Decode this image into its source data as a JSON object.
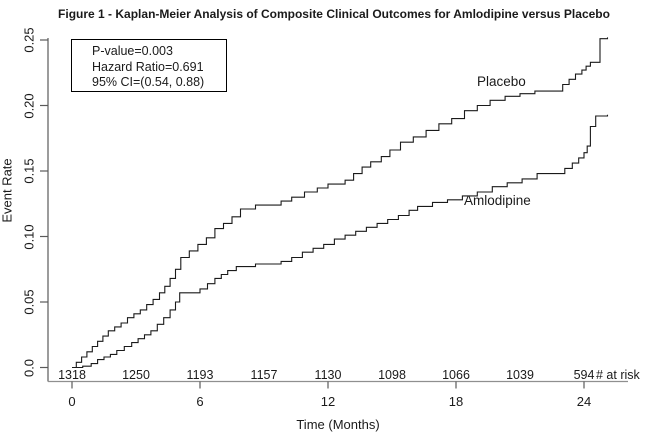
{
  "figure": {
    "title": "Figure 1 - Kaplan-Meier Analysis of Composite Clinical Outcomes for Amlodipine versus Placebo"
  },
  "stat_box": {
    "lines": [
      "P-value=0.003",
      "Hazard Ratio=0.691",
      "95% CI=(0.54, 0.88)"
    ]
  },
  "chart_data": {
    "type": "line",
    "subtype": "kaplan-meier-step",
    "title": "Figure 1 - Kaplan-Meier Analysis of Composite Clinical Outcomes for Amlodipine versus Placebo",
    "xlabel": "Time (Months)",
    "ylabel": "Event Rate",
    "xlim": [
      0,
      25.5
    ],
    "ylim": [
      0,
      0.25
    ],
    "x_ticks": [
      0,
      6,
      12,
      18,
      24
    ],
    "y_ticks": [
      "0.0",
      "0.05",
      "0.10",
      "0.15",
      "0.20",
      "0.25"
    ],
    "grid": false,
    "legend_position": "inline-labels",
    "line_color": "#1a1a1a",
    "series": [
      {
        "name": "Placebo",
        "points": [
          [
            0,
            0
          ],
          [
            0.2,
            0.004
          ],
          [
            0.45,
            0.008
          ],
          [
            0.7,
            0.012
          ],
          [
            0.95,
            0.016
          ],
          [
            1.2,
            0.02
          ],
          [
            1.45,
            0.024
          ],
          [
            1.7,
            0.028
          ],
          [
            2.0,
            0.031
          ],
          [
            2.3,
            0.034
          ],
          [
            2.6,
            0.038
          ],
          [
            2.9,
            0.041
          ],
          [
            3.2,
            0.044
          ],
          [
            3.5,
            0.048
          ],
          [
            3.8,
            0.052
          ],
          [
            4.1,
            0.057
          ],
          [
            4.35,
            0.062
          ],
          [
            4.6,
            0.068
          ],
          [
            4.85,
            0.075
          ],
          [
            5.1,
            0.084
          ],
          [
            5.5,
            0.089
          ],
          [
            5.9,
            0.094
          ],
          [
            6.3,
            0.099
          ],
          [
            6.7,
            0.106
          ],
          [
            7.1,
            0.11
          ],
          [
            7.5,
            0.115
          ],
          [
            7.9,
            0.121
          ],
          [
            8.6,
            0.124
          ],
          [
            9.8,
            0.127
          ],
          [
            10.3,
            0.13
          ],
          [
            10.9,
            0.134
          ],
          [
            11.5,
            0.137
          ],
          [
            12.0,
            0.14
          ],
          [
            12.8,
            0.143
          ],
          [
            13.2,
            0.148
          ],
          [
            13.6,
            0.153
          ],
          [
            14.0,
            0.157
          ],
          [
            14.5,
            0.161
          ],
          [
            14.9,
            0.166
          ],
          [
            15.4,
            0.172
          ],
          [
            16.0,
            0.176
          ],
          [
            16.6,
            0.181
          ],
          [
            17.2,
            0.186
          ],
          [
            17.8,
            0.19
          ],
          [
            18.4,
            0.196
          ],
          [
            19.0,
            0.2
          ],
          [
            19.6,
            0.204
          ],
          [
            20.3,
            0.207
          ],
          [
            21.0,
            0.209
          ],
          [
            21.7,
            0.211
          ],
          [
            23.0,
            0.216
          ],
          [
            23.3,
            0.22
          ],
          [
            23.6,
            0.224
          ],
          [
            23.9,
            0.227
          ],
          [
            24.1,
            0.23
          ],
          [
            24.3,
            0.233
          ],
          [
            24.75,
            0.251
          ],
          [
            25.1,
            0.252
          ]
        ]
      },
      {
        "name": "Amlodipine",
        "points": [
          [
            0,
            0
          ],
          [
            0.5,
            0.001
          ],
          [
            0.9,
            0.003
          ],
          [
            1.2,
            0.006
          ],
          [
            1.5,
            0.008
          ],
          [
            1.8,
            0.01
          ],
          [
            2.1,
            0.013
          ],
          [
            2.45,
            0.016
          ],
          [
            2.8,
            0.019
          ],
          [
            3.1,
            0.022
          ],
          [
            3.4,
            0.025
          ],
          [
            3.7,
            0.028
          ],
          [
            4.0,
            0.033
          ],
          [
            4.3,
            0.038
          ],
          [
            4.6,
            0.044
          ],
          [
            4.85,
            0.05
          ],
          [
            5.05,
            0.057
          ],
          [
            6.0,
            0.06
          ],
          [
            6.35,
            0.064
          ],
          [
            6.7,
            0.068
          ],
          [
            7.0,
            0.071
          ],
          [
            7.3,
            0.074
          ],
          [
            7.7,
            0.077
          ],
          [
            8.6,
            0.079
          ],
          [
            9.8,
            0.081
          ],
          [
            10.3,
            0.084
          ],
          [
            10.8,
            0.088
          ],
          [
            11.3,
            0.091
          ],
          [
            11.8,
            0.094
          ],
          [
            12.3,
            0.098
          ],
          [
            12.8,
            0.101
          ],
          [
            13.3,
            0.104
          ],
          [
            13.8,
            0.107
          ],
          [
            14.3,
            0.11
          ],
          [
            14.8,
            0.113
          ],
          [
            15.3,
            0.116
          ],
          [
            15.8,
            0.12
          ],
          [
            16.2,
            0.123
          ],
          [
            16.9,
            0.126
          ],
          [
            17.6,
            0.128
          ],
          [
            18.3,
            0.131
          ],
          [
            19.0,
            0.134
          ],
          [
            19.7,
            0.138
          ],
          [
            20.4,
            0.141
          ],
          [
            21.1,
            0.144
          ],
          [
            21.8,
            0.148
          ],
          [
            23.1,
            0.152
          ],
          [
            23.45,
            0.156
          ],
          [
            23.75,
            0.16
          ],
          [
            24.0,
            0.164
          ],
          [
            24.15,
            0.169
          ],
          [
            24.3,
            0.184
          ],
          [
            24.55,
            0.192
          ],
          [
            25.1,
            0.193
          ]
        ]
      }
    ],
    "at_risk": {
      "label": "# at risk",
      "times": [
        0,
        3,
        6,
        9,
        12,
        15,
        18,
        21,
        24
      ],
      "values": [
        1318,
        1250,
        1193,
        1157,
        1130,
        1098,
        1066,
        1039,
        594
      ]
    }
  }
}
